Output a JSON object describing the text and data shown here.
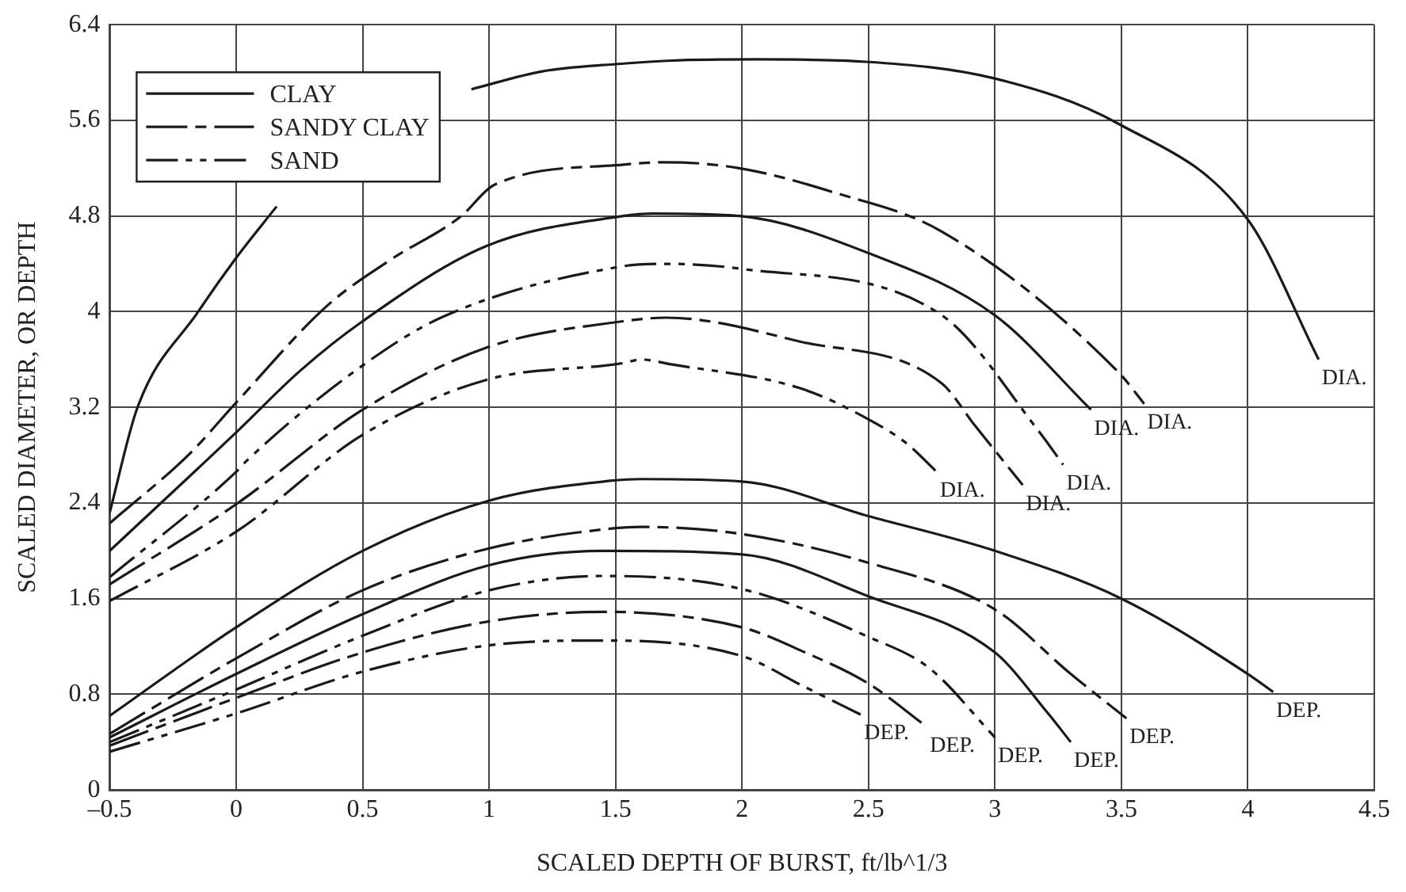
{
  "chart_data": {
    "type": "line",
    "xlabel": "SCALED DEPTH OF BURST, ft/lb^1/3",
    "ylabel": "SCALED DIAMETER, OR DEPTH",
    "xlim": [
      -0.5,
      4.5
    ],
    "xticks": [
      {
        "value": -0.5,
        "label": "–0.5"
      },
      0,
      0.5,
      1,
      1.5,
      2,
      2.5,
      3,
      3.5,
      4,
      4.5
    ],
    "ylim": [
      0,
      6.4
    ],
    "yticks": [
      0,
      0.8,
      1.6,
      2.4,
      3.2,
      4,
      4.8,
      5.6,
      6.4
    ],
    "grid": true,
    "legend": "top left",
    "series": [
      {
        "name": "CLAY",
        "color": "#1a1a1a",
        "line_style": "solid",
        "x": [
          -0.5,
          -0.39,
          -0.15,
          0,
          0.16,
          0.3,
          0.5,
          0.75,
          0.93,
          1.21,
          1.5,
          1.72,
          2.06,
          2.49,
          3.0,
          3.49,
          4.0,
          4.28
        ],
        "values": [
          2.32,
          3.2,
          4.0,
          4.45,
          4.88,
          null,
          null,
          null,
          5.86,
          6.01,
          6.07,
          6.1,
          6.11,
          6.09,
          5.95,
          5.57,
          4.77,
          3.6
        ]
      },
      {
        "name": "SANDY CLAY",
        "color": "#1a1a1a",
        "line_style": "dashed",
        "x": [
          -0.5,
          -0.18,
          0,
          0.36,
          0.6,
          0.89,
          1.02,
          1.53,
          1.7,
          1.99,
          2.36,
          2.79,
          3.49,
          3.59
        ],
        "values": [
          2.23,
          2.82,
          3.24,
          4.05,
          4.42,
          4.8,
          5.06,
          5.23,
          5.25,
          5.2,
          5.0,
          4.67,
          3.49,
          3.23
        ]
      },
      {
        "name": "SAND",
        "color": "#1a1a1a",
        "line_style": "dashdot",
        "x": [
          -0.5,
          0,
          0.04,
          0.5,
          0.82,
          1.53,
          1.7,
          1.99,
          2.79,
          3.17,
          3.27
        ],
        "values": [
          1.78,
          2.66,
          2.75,
          3.55,
          3.96,
          4.38,
          4.4,
          4.36,
          3.97,
          3.01,
          2.72
        ]
      },
      {
        "color": "#1a1a1a",
        "line_style": "solid",
        "x": [
          -0.5,
          0,
          0.25,
          0.5,
          0.99,
          1.53,
          1.65,
          1.99,
          2.5,
          3.0,
          3.38
        ],
        "values": [
          2.0,
          2.99,
          3.5,
          3.92,
          4.55,
          4.8,
          4.82,
          4.8,
          4.49,
          3.97,
          3.18
        ]
      },
      {
        "color": "#1a1a1a",
        "line_style": "dashed",
        "x": [
          -0.5,
          0,
          0.5,
          0.99,
          1.53,
          1.7,
          2.23,
          2.79,
          2.92,
          3.11
        ],
        "values": [
          1.72,
          2.39,
          3.18,
          3.7,
          3.92,
          3.95,
          3.75,
          3.4,
          3.05,
          2.55
        ]
      },
      {
        "color": "#1a1a1a",
        "line_style": "dashdot",
        "x": [
          -0.5,
          0,
          0.5,
          0.99,
          1.53,
          1.6,
          1.72,
          2.23,
          2.5,
          2.65,
          2.77
        ],
        "values": [
          1.58,
          2.16,
          2.97,
          3.43,
          3.57,
          3.6,
          3.56,
          3.36,
          3.1,
          2.9,
          2.66
        ]
      },
      {
        "color": "#1a1a1a",
        "line_style": "solid",
        "x": [
          -0.5,
          0,
          0.5,
          1,
          1.5,
          1.6,
          2,
          2.5,
          3,
          3.5,
          4,
          4.1
        ],
        "values": [
          0.62,
          1.36,
          2.0,
          2.42,
          2.59,
          2.6,
          2.58,
          2.29,
          2.0,
          1.6,
          0.97,
          0.82
        ]
      },
      {
        "color": "#1a1a1a",
        "line_style": "dashed",
        "x": [
          -0.5,
          0,
          0.5,
          1,
          1.5,
          1.6,
          2,
          2.5,
          3,
          3.3,
          3.52
        ],
        "values": [
          0.47,
          1.1,
          1.67,
          2.02,
          2.19,
          2.2,
          2.14,
          1.9,
          1.51,
          0.97,
          0.6
        ]
      },
      {
        "color": "#1a1a1a",
        "line_style": "solid",
        "x": [
          -0.5,
          0,
          0.5,
          1,
          1.45,
          2,
          2.5,
          3,
          3.21,
          3.3
        ],
        "values": [
          0.44,
          0.97,
          1.47,
          1.88,
          2.0,
          1.97,
          1.62,
          1.15,
          0.64,
          0.4
        ]
      },
      {
        "color": "#1a1a1a",
        "line_style": "dashdot",
        "x": [
          -0.5,
          0,
          0.5,
          1,
          1.45,
          2,
          2.5,
          2.74,
          3.0
        ],
        "values": [
          0.4,
          0.84,
          1.29,
          1.67,
          1.79,
          1.68,
          1.28,
          1.02,
          0.44
        ]
      },
      {
        "color": "#1a1a1a",
        "line_style": "dashed",
        "x": [
          -0.5,
          0,
          0.5,
          1,
          1.45,
          2,
          2.25,
          2.5,
          2.73
        ],
        "values": [
          0.37,
          0.77,
          1.15,
          1.41,
          1.49,
          1.36,
          1.15,
          0.89,
          0.53
        ]
      },
      {
        "color": "#1a1a1a",
        "line_style": "dashdot",
        "x": [
          -0.5,
          0,
          0.5,
          1,
          1.45,
          2,
          2.25,
          2.47
        ],
        "values": [
          0.32,
          0.64,
          0.99,
          1.21,
          1.25,
          1.12,
          0.86,
          0.63
        ]
      }
    ],
    "annotations": [
      {
        "text": "DIA.",
        "x": 4.28,
        "y": 3.6
      },
      {
        "text": "DIA.",
        "x": 3.38,
        "y": 3.18
      },
      {
        "text": "DIA.",
        "x": 3.59,
        "y": 3.23
      },
      {
        "text": "DIA.",
        "x": 2.77,
        "y": 2.66
      },
      {
        "text": "DIA.",
        "x": 3.11,
        "y": 2.55
      },
      {
        "text": "DIA.",
        "x": 3.27,
        "y": 2.72
      },
      {
        "text": "DEP.",
        "x": 2.47,
        "y": 0.63
      },
      {
        "text": "DEP.",
        "x": 2.73,
        "y": 0.53
      },
      {
        "text": "DEP.",
        "x": 3.0,
        "y": 0.44
      },
      {
        "text": "DEP.",
        "x": 3.3,
        "y": 0.4
      },
      {
        "text": "DEP.",
        "x": 3.52,
        "y": 0.6
      },
      {
        "text": "DEP.",
        "x": 4.1,
        "y": 0.82
      }
    ]
  }
}
